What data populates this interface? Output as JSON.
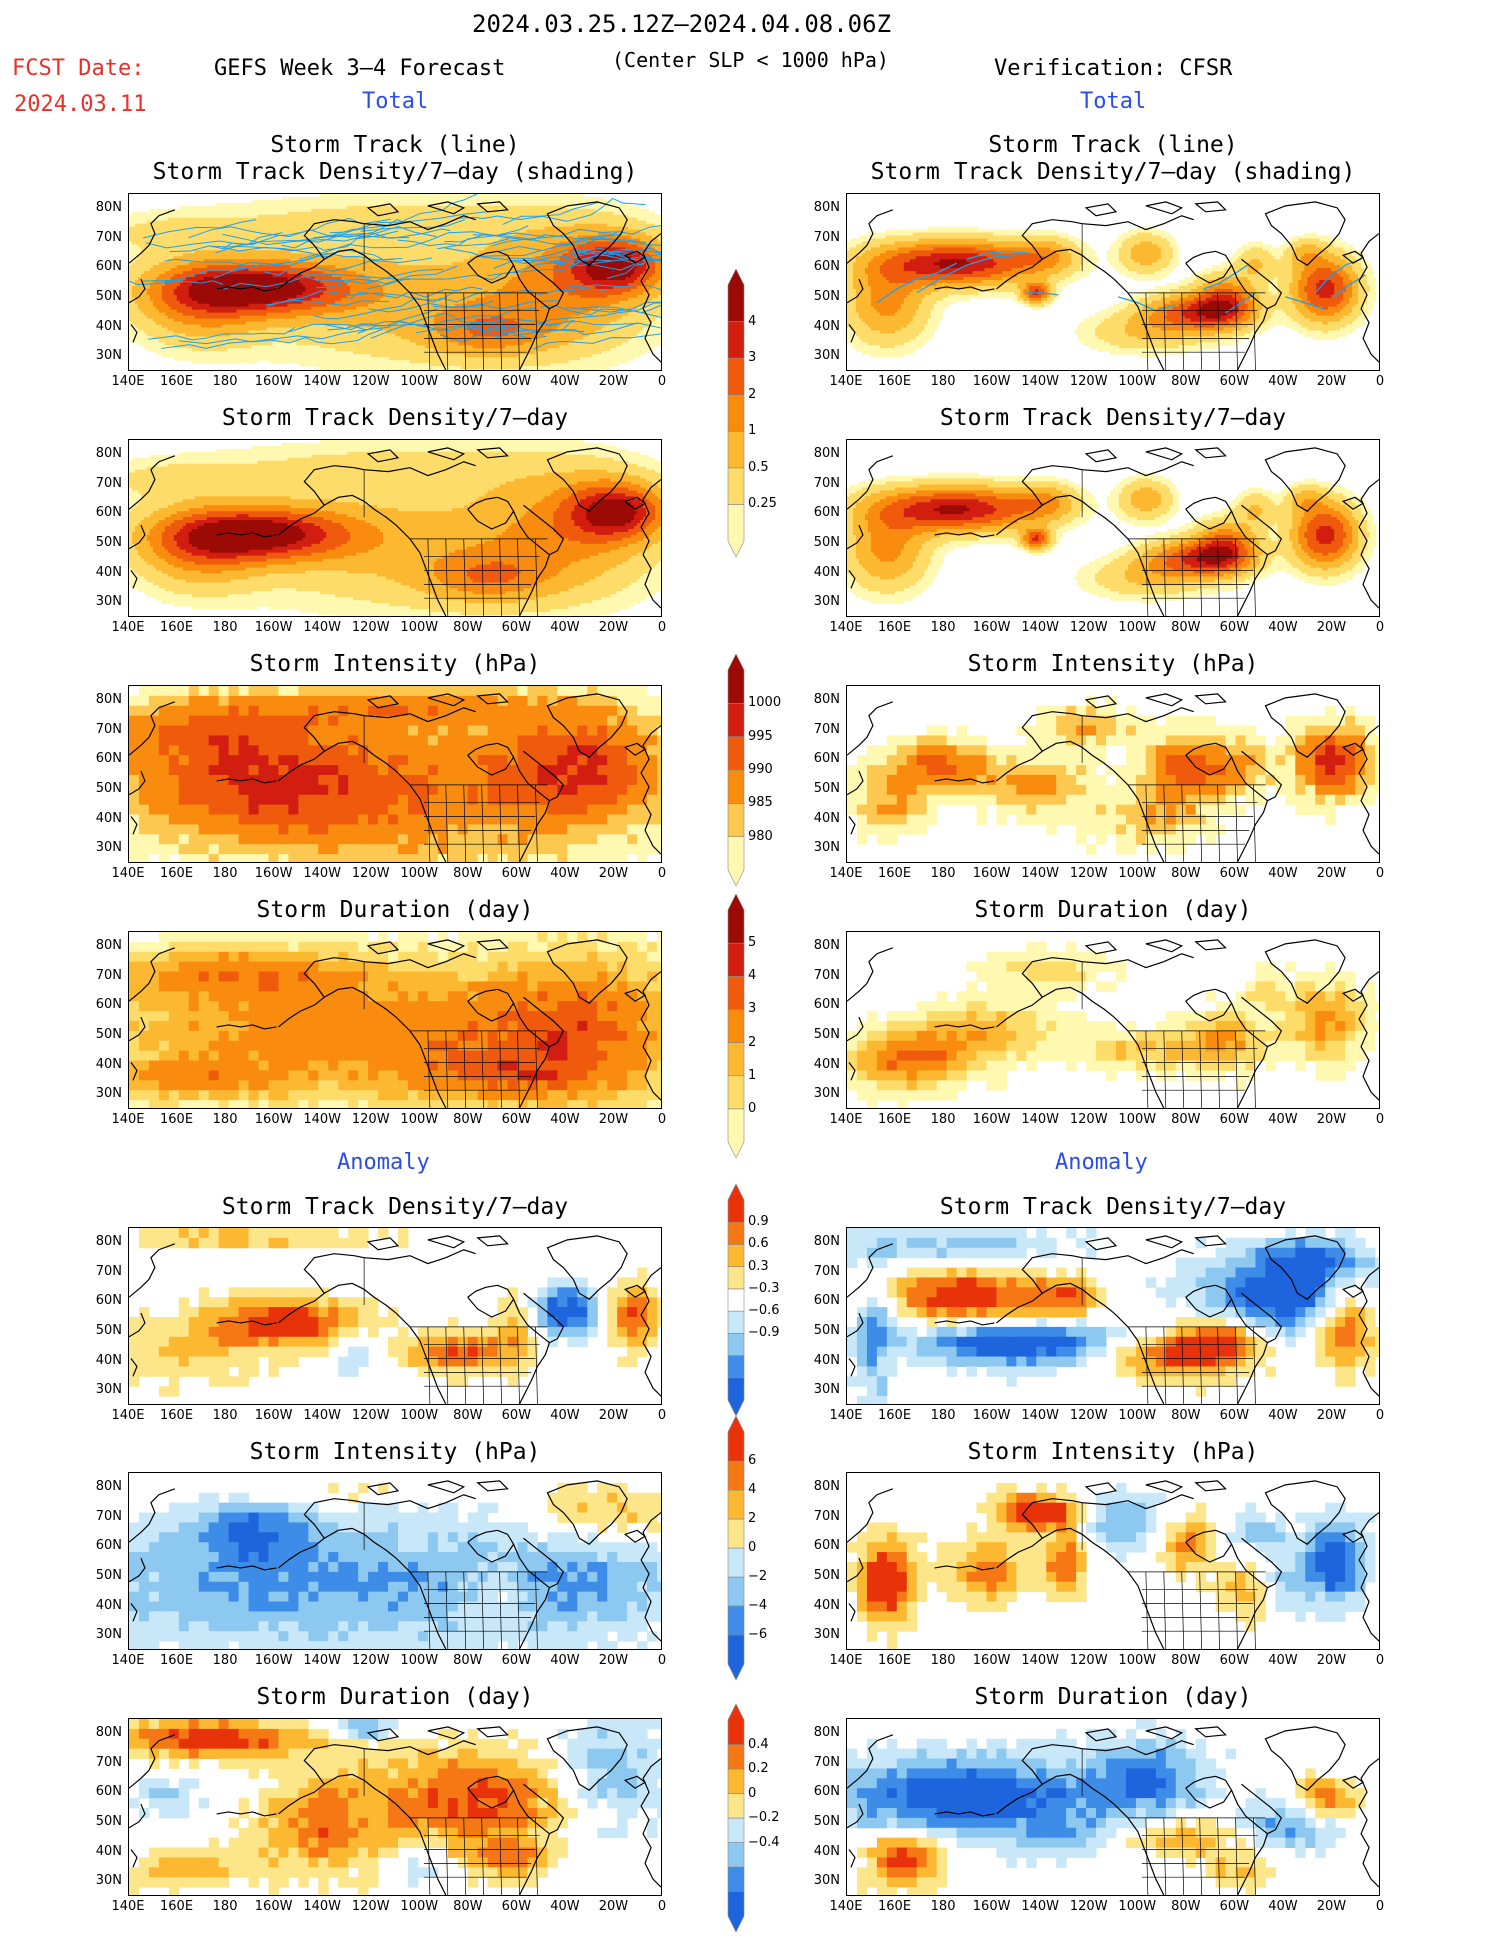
{
  "header": {
    "period": "2024.03.25.12Z–2024.04.08.06Z",
    "criterion": "(Center SLP < 1000 hPa)",
    "fcst_label": "FCST Date:",
    "fcst_date": "2024.03.11",
    "model": "GEFS Week 3–4 Forecast",
    "verification": "Verification: CFSR"
  },
  "sections": {
    "total": "Total",
    "anomaly": "Anomaly"
  },
  "panel_titles": {
    "track_line": "Storm Track (line)",
    "track_shading": "Storm Track Density/7–day (shading)",
    "density": "Storm Track Density/7–day",
    "intensity": "Storm Intensity (hPa)",
    "duration": "Storm Duration (day)"
  },
  "axes": {
    "lat_labels": [
      "80N",
      "70N",
      "60N",
      "50N",
      "40N",
      "30N"
    ],
    "lon_labels": [
      "140E",
      "160E",
      "180",
      "160W",
      "140W",
      "120W",
      "100W",
      "80W",
      "60W",
      "40W",
      "20W",
      "0"
    ]
  },
  "colorbars": {
    "density_total": {
      "labels": [
        "4",
        "3",
        "2",
        "1",
        "0.5",
        "0.25"
      ],
      "colors": [
        "#fff8b0",
        "#fddc6a",
        "#fcb830",
        "#f98c0e",
        "#ef5a0c",
        "#d21e10",
        "#9c0a06"
      ]
    },
    "intensity_total": {
      "labels": [
        "1000",
        "995",
        "990",
        "985",
        "980"
      ],
      "colors": [
        "#fff8b0",
        "#fcc850",
        "#f98c0e",
        "#ef5a0c",
        "#d21e10",
        "#9c0a06"
      ]
    },
    "duration_total": {
      "labels": [
        "5",
        "4",
        "3",
        "2",
        "1",
        "0"
      ],
      "colors": [
        "#fff8b0",
        "#fddc6a",
        "#fcb830",
        "#f98c0e",
        "#ef5a0c",
        "#d21e10",
        "#9c0a06"
      ]
    },
    "density_anom": {
      "labels": [
        "0.9",
        "0.6",
        "0.3",
        "−0.3",
        "−0.6",
        "−0.9"
      ],
      "colors": [
        "#1e64dc",
        "#3c8ce8",
        "#8cc8f0",
        "#c8e8fa",
        "#ffffff",
        "#fde68a",
        "#fcb830",
        "#f57814",
        "#e8320a"
      ]
    },
    "intensity_anom": {
      "labels": [
        "6",
        "4",
        "2",
        "0",
        "−2",
        "−4",
        "−6"
      ],
      "colors": [
        "#1e64dc",
        "#3c8ce8",
        "#8cc8f0",
        "#c8e8fa",
        "#fde68a",
        "#fcb830",
        "#f57814",
        "#e8320a"
      ]
    },
    "duration_anom": {
      "labels": [
        "0.4",
        "0.2",
        "0",
        "−0.2",
        "−0.4"
      ],
      "colors": [
        "#1e64dc",
        "#3c8ce8",
        "#8cc8f0",
        "#c8e8fa",
        "#fde68a",
        "#fcb830",
        "#f57814",
        "#e8320a"
      ]
    }
  },
  "palette": {
    "track_line": "#1ea0f0",
    "coast": "#000000"
  }
}
